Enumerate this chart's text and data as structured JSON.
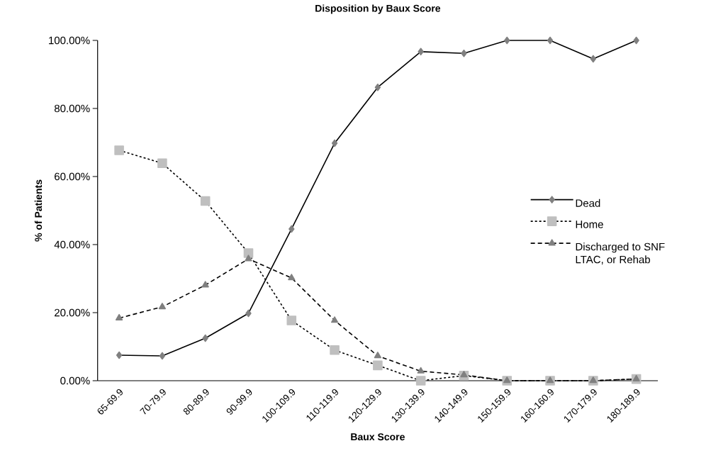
{
  "chart_data": {
    "type": "line",
    "title": "Disposition by Baux Score",
    "xlabel": "Baux Score",
    "ylabel": "% of Patients",
    "categories": [
      "65-69.9",
      "70-79.9",
      "80-89.9",
      "90-99.9",
      "100-109.9",
      "110-119.9",
      "120-129.9",
      "130-139.9",
      "140-149.9",
      "150-159.9",
      "160-160.9",
      "170-179.9",
      "180-189.9"
    ],
    "ylim": [
      0,
      100
    ],
    "yticks": [
      {
        "value": 0,
        "label": "0.00%"
      },
      {
        "value": 20,
        "label": "20.00%"
      },
      {
        "value": 40,
        "label": "40.00%"
      },
      {
        "value": 60,
        "label": "60.00%"
      },
      {
        "value": 80,
        "label": "80.00%"
      },
      {
        "value": 100,
        "label": "100.00%"
      }
    ],
    "grid": false,
    "legend": "right",
    "series": [
      {
        "name": "Dead",
        "color": "#808080",
        "marker": "diamond",
        "line_style": "solid",
        "values": [
          7.5,
          7.3,
          12.5,
          19.8,
          44.6,
          69.8,
          86.2,
          96.7,
          96.2,
          100,
          100,
          94.6,
          100
        ]
      },
      {
        "name": "Home",
        "color": "#bfbfbf",
        "marker": "square",
        "line_style": "dotted",
        "values": [
          67.7,
          63.9,
          52.8,
          37.5,
          17.7,
          9.0,
          4.5,
          0,
          1.5,
          0,
          0,
          0,
          0.5
        ]
      },
      {
        "name": "Discharged to SNF LTAC, or Rehab",
        "color": "#808080",
        "marker": "triangle",
        "line_style": "dashed",
        "values": [
          18.4,
          21.7,
          28.1,
          35.8,
          30.2,
          17.7,
          7.3,
          2.8,
          1.7,
          0,
          0,
          0,
          0.5
        ]
      }
    ]
  }
}
